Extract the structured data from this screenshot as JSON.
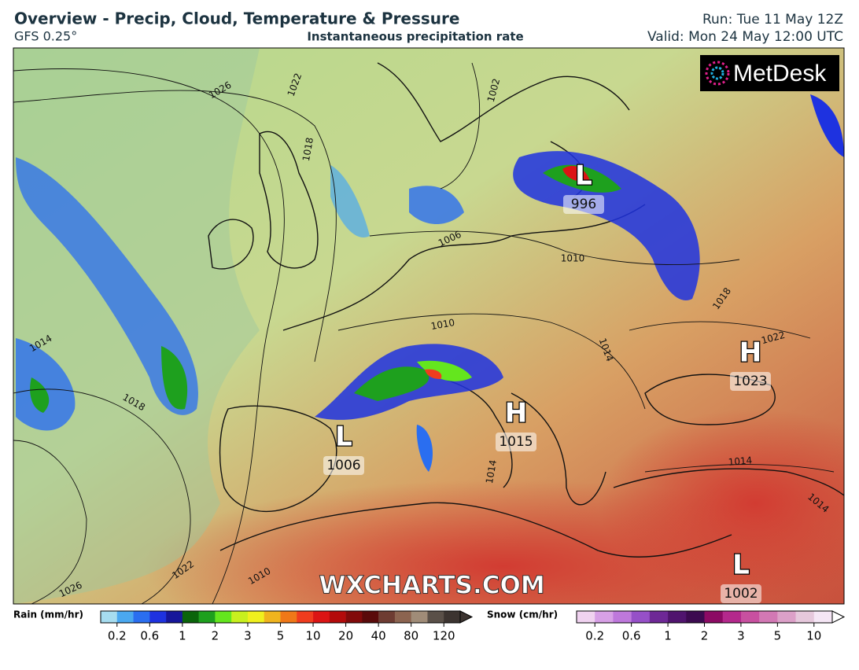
{
  "header": {
    "title": "Overview - Precip, Cloud, Temperature & Pressure",
    "model": "GFS 0.25°",
    "subtitle": "Instantaneous precipitation rate",
    "run": "Run: Tue 11 May 12Z",
    "valid": "Valid: Mon 24 May 12:00 UTC"
  },
  "logo": "MetDesk",
  "watermark": "WXCHARTS.COM",
  "pressure_centers": [
    {
      "letter": "L",
      "value": 996
    },
    {
      "letter": "L",
      "value": 1006
    },
    {
      "letter": "H",
      "value": 1015
    },
    {
      "letter": "H",
      "value": 1023
    },
    {
      "letter": "L",
      "value": 1002
    }
  ],
  "isobar_labels": [
    1026,
    1022,
    1018,
    1002,
    1006,
    1010,
    1010,
    1014,
    1018,
    1014,
    1022,
    1026,
    1010,
    1018,
    1022,
    1014,
    1014,
    1014
  ],
  "legend": {
    "rain": {
      "title": "Rain (mm/hr)",
      "ticks": [
        0.2,
        0.6,
        1,
        2,
        3,
        5,
        10,
        20,
        40,
        80,
        120
      ],
      "colors": [
        "#a6dcef",
        "#4aa8f0",
        "#2a6ef0",
        "#1e32e0",
        "#16169a",
        "#0a640a",
        "#1ea01e",
        "#64e61e",
        "#c8f01e",
        "#f0f01e",
        "#f0b41e",
        "#f07818",
        "#f03c1e",
        "#dc1414",
        "#b40a0a",
        "#820a0a",
        "#5a0a0a",
        "#6e3c32",
        "#8c6450",
        "#a08c78",
        "#5a5048",
        "#3c3430"
      ]
    },
    "snow": {
      "title": "Snow (cm/hr)",
      "ticks": [
        0.2,
        0.6,
        1,
        2,
        3,
        5,
        10
      ],
      "colors": [
        "#f0d2f0",
        "#d7a0e6",
        "#be78dc",
        "#9650c8",
        "#6e2896",
        "#50146e",
        "#3c0a50",
        "#8c0a64",
        "#b4288c",
        "#c850a0",
        "#d278b4",
        "#dca0c8",
        "#e6c8dc",
        "#f5e6f5"
      ]
    }
  }
}
